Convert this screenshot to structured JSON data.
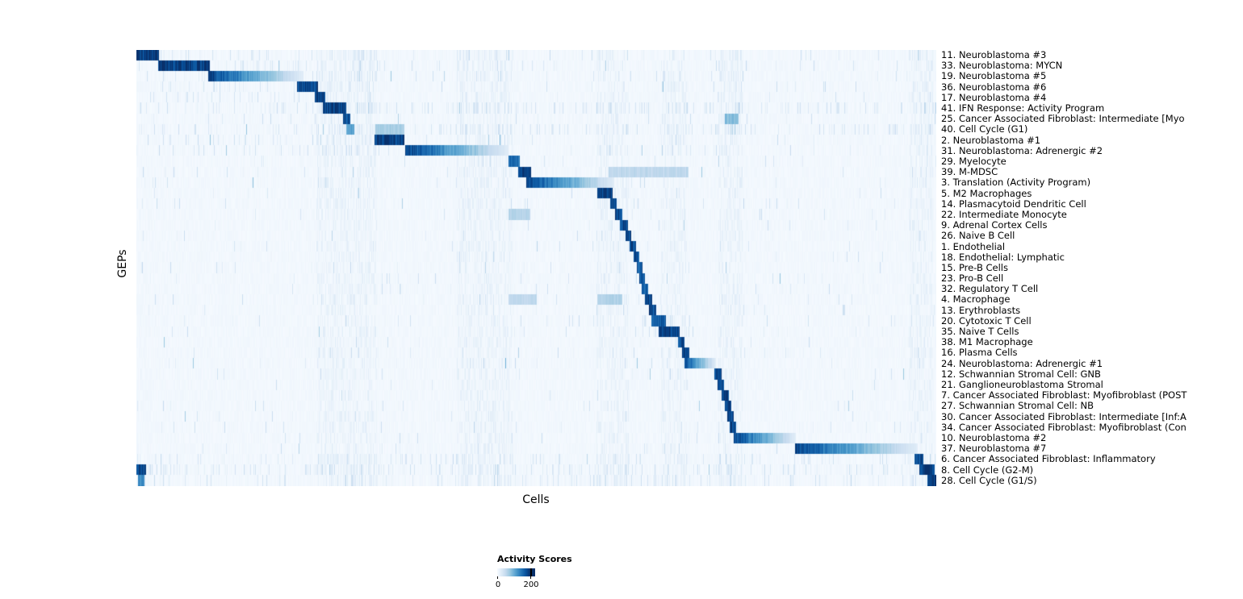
{
  "colors": {
    "background": "#ffffff",
    "text": "#000000",
    "cmap": [
      "#f7fbff",
      "#deebf7",
      "#c6dbef",
      "#9ecae1",
      "#6baed6",
      "#4292c6",
      "#2171b5",
      "#08519c",
      "#08306b"
    ]
  },
  "chart_data": {
    "type": "heatmap",
    "title": "",
    "xlabel": "Cells",
    "ylabel": "GEPs",
    "legend_position": "bottom",
    "colorbar": {
      "title": "Activity Scores",
      "min": 0,
      "max": 200,
      "min_label": "0",
      "max_label": "200"
    },
    "description": "GEP activity scores per cell; cells ordered so each GEP's high-activity block forms a diagonal staircase. Blocks given as [start_fraction, end_fraction, peak_score, style] along the cell axis.",
    "vertical_bands": [
      [
        0.225,
        0.3
      ],
      [
        0.4,
        0.47
      ],
      [
        0.575,
        0.615
      ],
      [
        0.655,
        0.688
      ],
      [
        0.727,
        0.757
      ],
      [
        0.965,
        0.995
      ]
    ],
    "rows": [
      {
        "label": "11. Neuroblastoma #3",
        "blocks": [
          [
            0.0,
            0.028,
            195,
            "solid"
          ]
        ],
        "speckle": 0.6,
        "extra_speckle": [
          [
            0.03,
            0.3,
            0.55
          ]
        ]
      },
      {
        "label": "33. Neuroblastoma: MYCN",
        "blocks": [
          [
            0.027,
            0.091,
            195,
            "solid"
          ]
        ],
        "speckle": 0.5,
        "extra_speckle": [
          [
            0.03,
            0.3,
            0.45
          ]
        ]
      },
      {
        "label": "19. Neuroblastoma #5",
        "blocks": [
          [
            0.089,
            0.208,
            190,
            "fade"
          ]
        ],
        "speckle": 0.5,
        "extra_speckle": [
          [
            0.03,
            0.3,
            0.4
          ]
        ]
      },
      {
        "label": "36. Neuroblastoma #6",
        "blocks": [
          [
            0.2,
            0.227,
            185,
            "solid"
          ]
        ],
        "speckle": 0.45,
        "extra_speckle": [
          [
            0.03,
            0.3,
            0.35
          ]
        ]
      },
      {
        "label": "17. Neuroblastoma #4",
        "blocks": [
          [
            0.223,
            0.236,
            190,
            "solid"
          ]
        ],
        "speckle": 0.45,
        "extra_speckle": [
          [
            0.03,
            0.3,
            0.35
          ]
        ]
      },
      {
        "label": "41. IFN Response: Activity Program",
        "blocks": [
          [
            0.233,
            0.262,
            190,
            "solid"
          ]
        ],
        "speckle": 0.9,
        "extra_speckle": [
          [
            0.0,
            1.0,
            0.5
          ]
        ]
      },
      {
        "label": "25. Cancer Associated Fibroblast: Intermediate [Myo",
        "blocks": [
          [
            0.258,
            0.267,
            180,
            "solid"
          ],
          [
            0.735,
            0.752,
            90,
            "solid"
          ]
        ],
        "speckle": 0.35,
        "extra_speckle": []
      },
      {
        "label": "40. Cell Cycle (G1)",
        "blocks": [
          [
            0.262,
            0.272,
            110,
            "solid"
          ],
          [
            0.298,
            0.335,
            70,
            "solid"
          ]
        ],
        "speckle": 0.8,
        "extra_speckle": [
          [
            0.0,
            1.0,
            0.35
          ]
        ]
      },
      {
        "label": "2. Neuroblastoma #1",
        "blocks": [
          [
            0.297,
            0.335,
            195,
            "solid"
          ]
        ],
        "speckle": 0.5,
        "extra_speckle": [
          [
            0.03,
            0.3,
            0.3
          ]
        ]
      },
      {
        "label": "31. Neuroblastoma: Adrenergic #2",
        "blocks": [
          [
            0.336,
            0.465,
            190,
            "fade"
          ]
        ],
        "speckle": 0.5,
        "extra_speckle": [
          [
            0.03,
            0.33,
            0.3
          ]
        ]
      },
      {
        "label": "29. Myelocyte",
        "blocks": [
          [
            0.465,
            0.479,
            160,
            "solid"
          ]
        ],
        "speckle": 0.35,
        "extra_speckle": []
      },
      {
        "label": "39. M-MDSC",
        "blocks": [
          [
            0.477,
            0.493,
            195,
            "solid"
          ],
          [
            0.59,
            0.69,
            55,
            "solid"
          ]
        ],
        "speckle": 0.45,
        "extra_speckle": []
      },
      {
        "label": "3. Translation (Activity Program)",
        "blocks": [
          [
            0.487,
            0.597,
            190,
            "fade"
          ]
        ],
        "speckle": 0.45,
        "extra_speckle": []
      },
      {
        "label": "5. M2 Macrophages",
        "blocks": [
          [
            0.576,
            0.595,
            195,
            "solid"
          ]
        ],
        "speckle": 0.35,
        "extra_speckle": []
      },
      {
        "label": "14. Plasmacytoid Dendritic Cell",
        "blocks": [
          [
            0.592,
            0.6,
            185,
            "solid"
          ]
        ],
        "speckle": 0.3,
        "extra_speckle": []
      },
      {
        "label": "22. Intermediate Monocyte",
        "blocks": [
          [
            0.598,
            0.607,
            185,
            "solid"
          ],
          [
            0.465,
            0.492,
            60,
            "solid"
          ]
        ],
        "speckle": 0.35,
        "extra_speckle": []
      },
      {
        "label": "9. Adrenal Cortex Cells",
        "blocks": [
          [
            0.604,
            0.614,
            185,
            "solid"
          ]
        ],
        "speckle": 0.3,
        "extra_speckle": []
      },
      {
        "label": "26. Naive B Cell",
        "blocks": [
          [
            0.611,
            0.618,
            185,
            "solid"
          ]
        ],
        "speckle": 0.3,
        "extra_speckle": []
      },
      {
        "label": "1. Endothelial",
        "blocks": [
          [
            0.616,
            0.624,
            185,
            "solid"
          ]
        ],
        "speckle": 0.3,
        "extra_speckle": []
      },
      {
        "label": "18. Endothelial: Lymphatic",
        "blocks": [
          [
            0.621,
            0.628,
            175,
            "solid"
          ]
        ],
        "speckle": 0.28,
        "extra_speckle": []
      },
      {
        "label": "15. Pre-B Cells",
        "blocks": [
          [
            0.625,
            0.632,
            175,
            "solid"
          ]
        ],
        "speckle": 0.28,
        "extra_speckle": []
      },
      {
        "label": "23. Pro-B Cell",
        "blocks": [
          [
            0.628,
            0.635,
            175,
            "solid"
          ]
        ],
        "speckle": 0.28,
        "extra_speckle": []
      },
      {
        "label": "32. Regulatory T Cell",
        "blocks": [
          [
            0.631,
            0.639,
            175,
            "solid"
          ]
        ],
        "speckle": 0.3,
        "extra_speckle": []
      },
      {
        "label": "4. Macrophage",
        "blocks": [
          [
            0.635,
            0.644,
            185,
            "solid"
          ],
          [
            0.465,
            0.5,
            55,
            "solid"
          ],
          [
            0.576,
            0.607,
            65,
            "solid"
          ]
        ],
        "speckle": 0.4,
        "extra_speckle": []
      },
      {
        "label": "13. Erythroblasts",
        "blocks": [
          [
            0.64,
            0.649,
            185,
            "solid"
          ]
        ],
        "speckle": 0.3,
        "extra_speckle": []
      },
      {
        "label": "20. Cytotoxic T Cell",
        "blocks": [
          [
            0.643,
            0.661,
            170,
            "solid"
          ]
        ],
        "speckle": 0.35,
        "extra_speckle": [
          [
            0.63,
            0.7,
            0.5
          ]
        ]
      },
      {
        "label": "35. Naive T Cells",
        "blocks": [
          [
            0.652,
            0.679,
            195,
            "solid"
          ]
        ],
        "speckle": 0.35,
        "extra_speckle": [
          [
            0.63,
            0.7,
            0.5
          ]
        ]
      },
      {
        "label": "38. M1 Macrophage",
        "blocks": [
          [
            0.677,
            0.685,
            185,
            "solid"
          ]
        ],
        "speckle": 0.3,
        "extra_speckle": []
      },
      {
        "label": "16. Plasma Cells",
        "blocks": [
          [
            0.682,
            0.691,
            185,
            "solid"
          ]
        ],
        "speckle": 0.3,
        "extra_speckle": []
      },
      {
        "label": "24. Neuroblastoma: Adrenergic #1",
        "blocks": [
          [
            0.685,
            0.724,
            180,
            "fade"
          ]
        ],
        "speckle": 0.35,
        "extra_speckle": []
      },
      {
        "label": "12. Schwannian Stromal Cell: GNB",
        "blocks": [
          [
            0.722,
            0.731,
            195,
            "solid"
          ]
        ],
        "speckle": 0.3,
        "extra_speckle": []
      },
      {
        "label": "21. Ganglioneuroblastoma Stromal",
        "blocks": [
          [
            0.726,
            0.734,
            185,
            "solid"
          ]
        ],
        "speckle": 0.3,
        "extra_speckle": []
      },
      {
        "label": "7. Cancer Associated Fibroblast: Myofibroblast (POST",
        "blocks": [
          [
            0.731,
            0.74,
            195,
            "solid"
          ]
        ],
        "speckle": 0.3,
        "extra_speckle": []
      },
      {
        "label": "27. Schwannian Stromal Cell: NB",
        "blocks": [
          [
            0.735,
            0.743,
            185,
            "solid"
          ]
        ],
        "speckle": 0.3,
        "extra_speckle": []
      },
      {
        "label": "30. Cancer Associated Fibroblast: Intermediate [Inf:A",
        "blocks": [
          [
            0.738,
            0.746,
            185,
            "solid"
          ]
        ],
        "speckle": 0.3,
        "extra_speckle": []
      },
      {
        "label": "34. Cancer Associated Fibroblast: Myofibroblast (Con",
        "blocks": [
          [
            0.741,
            0.749,
            185,
            "solid"
          ]
        ],
        "speckle": 0.3,
        "extra_speckle": []
      },
      {
        "label": "10. Neuroblastoma #2",
        "blocks": [
          [
            0.746,
            0.824,
            190,
            "fade"
          ]
        ],
        "speckle": 0.4,
        "extra_speckle": []
      },
      {
        "label": "37. Neuroblastoma #7",
        "blocks": [
          [
            0.823,
            0.976,
            190,
            "fade"
          ]
        ],
        "speckle": 0.4,
        "extra_speckle": []
      },
      {
        "label": "6. Cancer Associated Fibroblast: Inflammatory",
        "blocks": [
          [
            0.972,
            0.983,
            180,
            "solid"
          ]
        ],
        "speckle": 0.5,
        "extra_speckle": [
          [
            0.0,
            1.0,
            0.3
          ]
        ]
      },
      {
        "label": "8. Cell Cycle (G2-M)",
        "blocks": [
          [
            0.0,
            0.012,
            185,
            "solid"
          ],
          [
            0.978,
            0.997,
            195,
            "solid"
          ]
        ],
        "speckle": 0.7,
        "extra_speckle": [
          [
            0.0,
            1.0,
            0.45
          ]
        ]
      },
      {
        "label": "28. Cell Cycle (G1/S)",
        "blocks": [
          [
            0.002,
            0.01,
            130,
            "solid"
          ],
          [
            0.988,
            1.0,
            195,
            "solid"
          ]
        ],
        "speckle": 0.6,
        "extra_speckle": [
          [
            0.0,
            1.0,
            0.35
          ]
        ]
      }
    ]
  }
}
